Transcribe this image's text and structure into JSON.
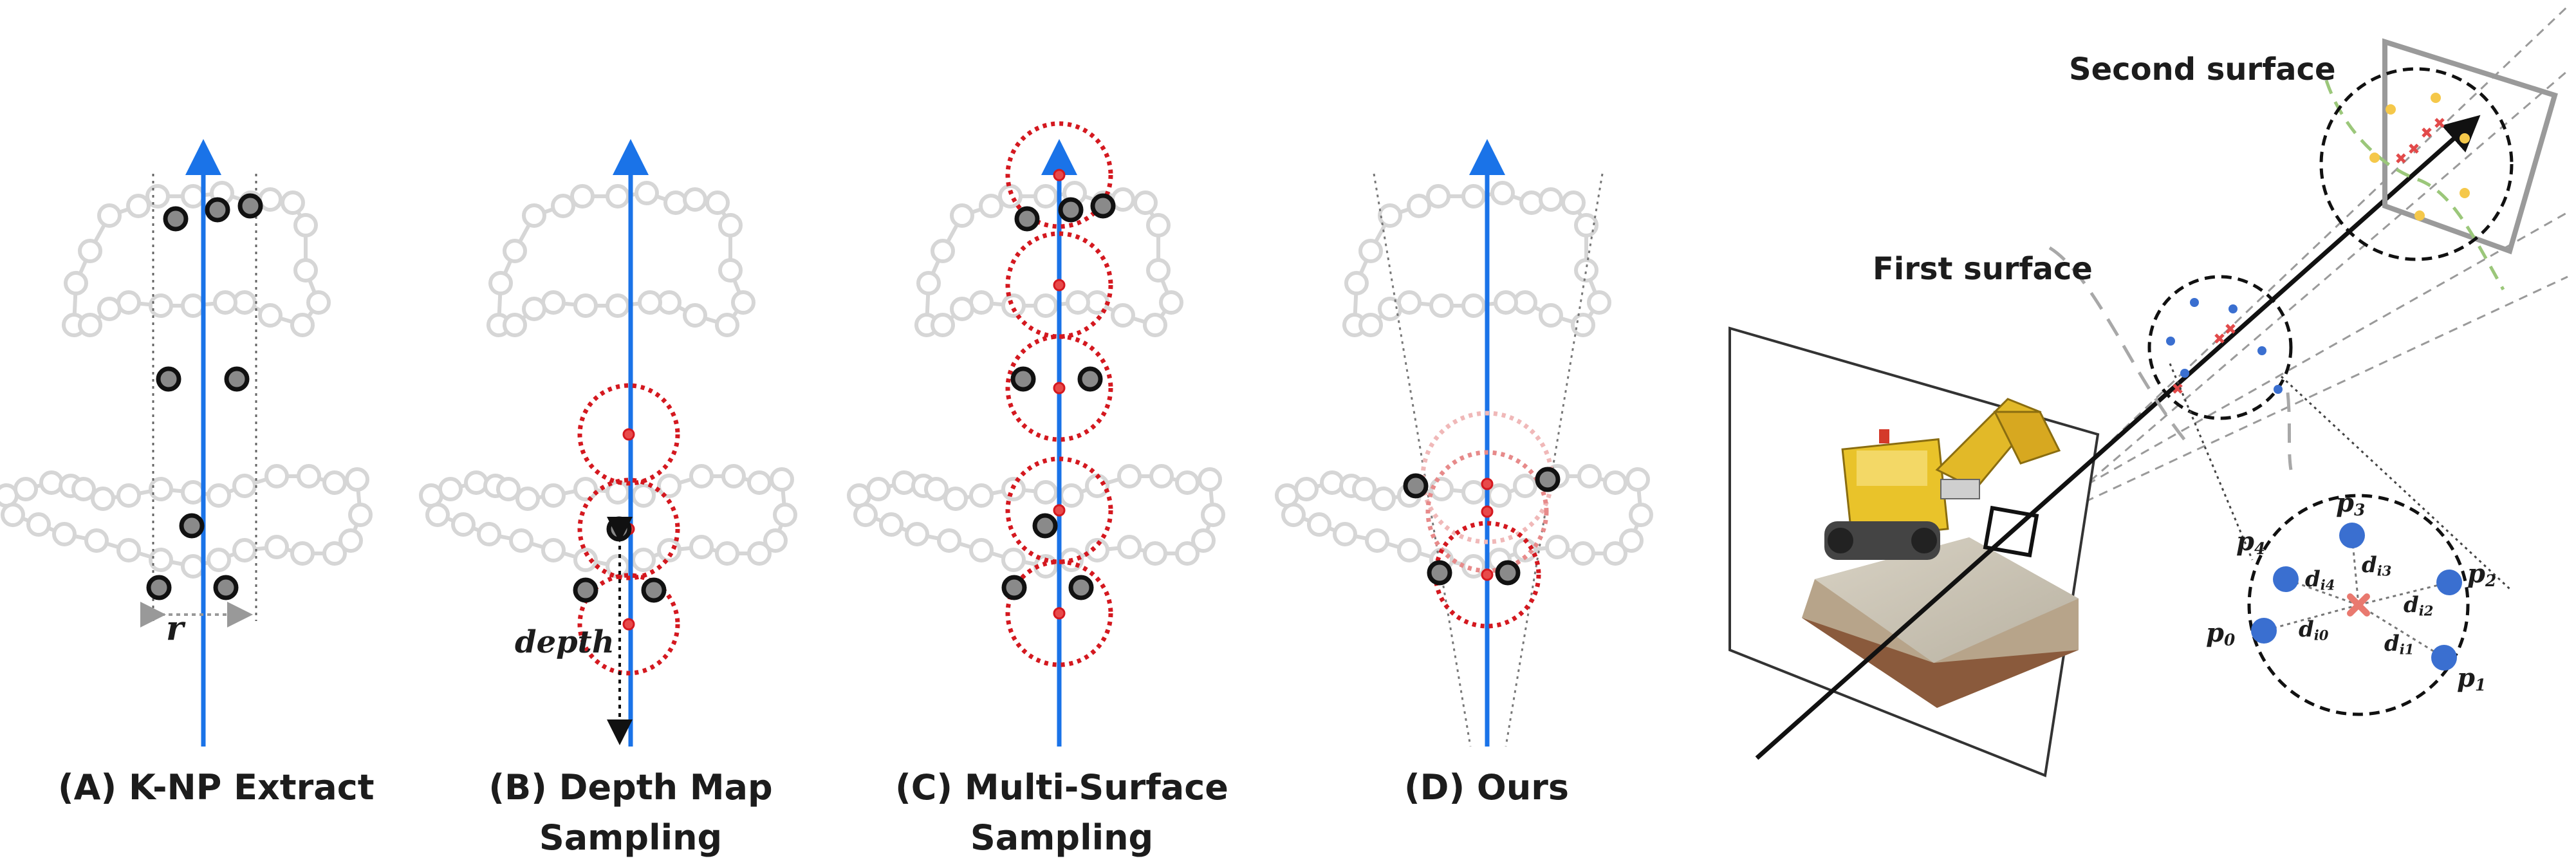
{
  "panels": [
    {
      "id": "A",
      "caption": "(A) K-NP Extract",
      "label": "r"
    },
    {
      "id": "B",
      "caption_line1": "(B) Depth Map",
      "caption_line2": "Sampling",
      "label": "depth"
    },
    {
      "id": "C",
      "caption_line1": "(C) Multi-Surface",
      "caption_line2": "Sampling"
    },
    {
      "id": "D",
      "caption": "(D) Ours"
    }
  ],
  "scene": {
    "first_surface_label": "First surface",
    "second_surface_label": "Second surface"
  },
  "inset": {
    "points": [
      {
        "label": "p",
        "sub": "0"
      },
      {
        "label": "p",
        "sub": "1"
      },
      {
        "label": "p",
        "sub": "2"
      },
      {
        "label": "p",
        "sub": "3"
      },
      {
        "label": "p",
        "sub": "4"
      }
    ],
    "distances": [
      {
        "label": "d",
        "sub": "i0"
      },
      {
        "label": "d",
        "sub": "i1"
      },
      {
        "label": "d",
        "sub": "i2"
      },
      {
        "label": "d",
        "sub": "i3"
      },
      {
        "label": "d",
        "sub": "i4"
      }
    ]
  },
  "colors": {
    "ray": "#1a73e8",
    "sample_circle": "#d4181f",
    "neighbor_point": "#1c1c1c",
    "surface_outline": "#d6d6d6",
    "inset_point": "#3a6fd0",
    "second_surface_points": "#f5c84a",
    "second_surface_curve": "#9bc77a"
  }
}
